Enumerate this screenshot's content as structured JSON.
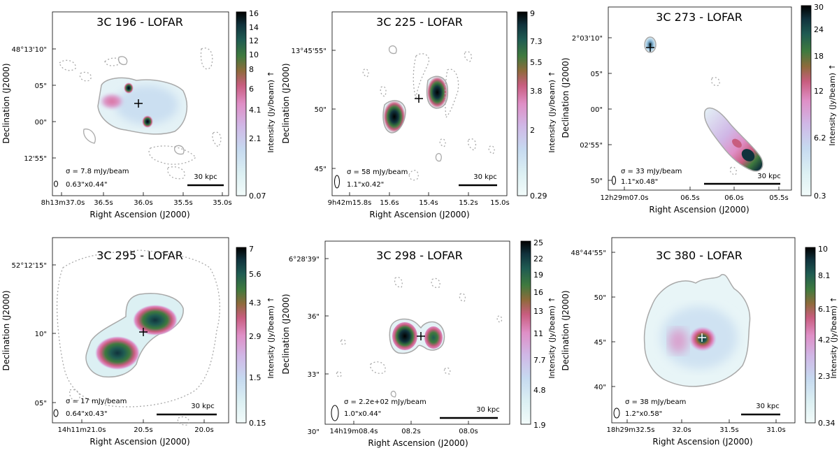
{
  "gradient_colors": [
    "#f2fbfa",
    "#dcf0f3",
    "#c6daf0",
    "#d0b7e6",
    "#df8fc6",
    "#c85d7f",
    "#8e6b3b",
    "#3f7a3e",
    "#1f5b52",
    "#10323c",
    "#000000"
  ],
  "contour_color": "#a9a9a9",
  "panels": [
    {
      "title": "3C 196 - LOFAR",
      "ylabel": "Declination (J2000)",
      "xlabel": "Right Ascension (J2000)",
      "cbar_label": "Intensity (Jy/beam) ↑",
      "xticks": [
        "8h13m37.0s",
        "36.5s",
        "36.0s",
        "35.5s",
        "35.0s"
      ],
      "yticks": [
        "48°13'10\"",
        "05\"",
        "00\"",
        "12'55\""
      ],
      "cbar_ticks": [
        "16",
        "14",
        "12",
        "10",
        "8",
        "6",
        "4.1",
        "2.1",
        "0.07"
      ],
      "sigma": "σ = 7.8 mJy/beam",
      "beam": "0.63\"x0.44\"",
      "scale": "30 kpc"
    },
    {
      "title": "3C 225 - LOFAR",
      "ylabel": "Declination (J2000)",
      "xlabel": "Right Ascension (J2000)",
      "cbar_label": "Intensity (Jy/beam) ↑",
      "xticks": [
        "9h42m15.8s",
        "15.6s",
        "15.4s",
        "15.2s",
        "15.0s"
      ],
      "yticks": [
        "13°45'55\"",
        "50\"",
        "45\""
      ],
      "cbar_ticks": [
        "9",
        "7.3",
        "5.5",
        "3.8",
        "2",
        "0.29"
      ],
      "sigma": "σ = 58 mJy/beam",
      "beam": "1.1\"x0.42\"",
      "scale": "30 kpc"
    },
    {
      "title": "3C 273 - LOFAR",
      "ylabel": "Declination (J2000)",
      "xlabel": "Right Ascension (J2000)",
      "cbar_label": "Intensity (Jy/beam) ↑",
      "xticks": [
        "12h29m07.0s",
        "06.5s",
        "06.0s",
        "05.5s"
      ],
      "yticks": [
        "2°03'10\"",
        "05\"",
        "00\"",
        "02'55\"",
        "50\""
      ],
      "cbar_ticks": [
        "30",
        "24",
        "18",
        "12",
        "6.2",
        "0.3"
      ],
      "sigma": "σ = 33 mJy/beam",
      "beam": "1.1\"x0.48\"",
      "scale": "30 kpc"
    },
    {
      "title": "3C 295 - LOFAR",
      "ylabel": "Declination (J2000)",
      "xlabel": "Right Ascension (J2000)",
      "cbar_label": "Intensity (Jy/beam) ↑",
      "xticks": [
        "14h11m21.0s",
        "20.5s",
        "20.0s"
      ],
      "yticks": [
        "52°12'15\"",
        "10\"",
        "05\""
      ],
      "cbar_ticks": [
        "7",
        "5.6",
        "4.3",
        "2.9",
        "1.5",
        "0.15"
      ],
      "sigma": "σ = 17 mJy/beam",
      "beam": "0.64\"x0.43\"",
      "scale": "30 kpc"
    },
    {
      "title": "3C 298 - LOFAR",
      "ylabel": "Declination (J2000)",
      "xlabel": "Right Ascension (J2000)",
      "cbar_label": "Intensity (Jy/beam) ↑",
      "xticks": [
        "14h19m08.4s",
        "08.2s",
        "08.0s"
      ],
      "yticks": [
        "6°28'39\"",
        "36\"",
        "33\"",
        "30\""
      ],
      "cbar_ticks": [
        "25",
        "22",
        "19",
        "16",
        "13",
        "11",
        "7.7",
        "4.8",
        "1.9"
      ],
      "sigma": "σ = 2.2e+02 mJy/beam",
      "beam": "1.0\"x0.44\"",
      "scale": "30 kpc"
    },
    {
      "title": "3C 380 - LOFAR",
      "ylabel": "Declination (J2000)",
      "xlabel": "Right Ascension (J2000)",
      "cbar_label": "Intensity (Jy/beam) ↑",
      "xticks": [
        "18h29m32.5s",
        "32.0s",
        "31.5s",
        "31.0s"
      ],
      "yticks": [
        "48°44'55\"",
        "50\"",
        "45\"",
        "40\""
      ],
      "cbar_ticks": [
        "10",
        "8.1",
        "6.1",
        "4.2",
        "2.3",
        "0.34"
      ],
      "sigma": "σ = 38 mJy/beam",
      "beam": "1.2\"x0.58\"",
      "scale": "30 kpc"
    }
  ]
}
